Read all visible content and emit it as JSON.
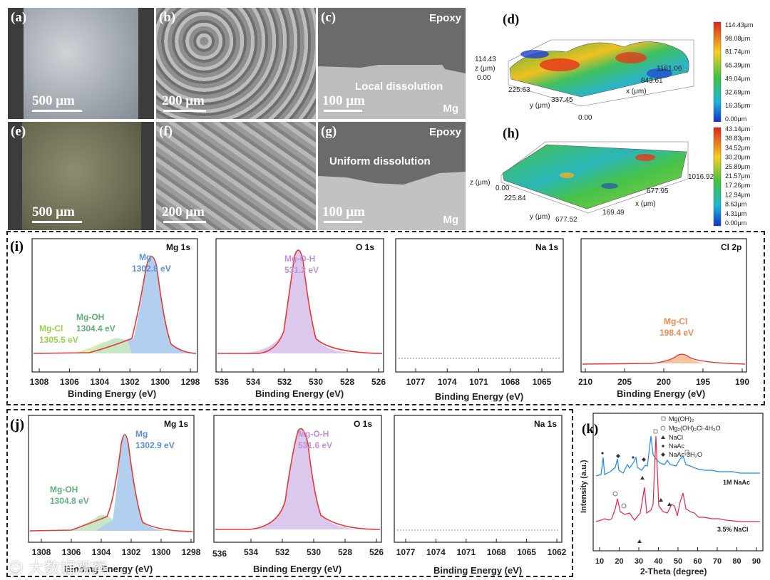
{
  "top_row": {
    "a": {
      "label": "(a)",
      "scale": "500 μm"
    },
    "b": {
      "label": "(b)",
      "scale": "200 μm"
    },
    "c": {
      "label": "(c)",
      "scale": "100 μm",
      "top": "Epoxy",
      "bottom": "Mg",
      "note": "Local dissolution"
    },
    "d": {
      "label": "(d)",
      "z_title": "z (μm)",
      "z_max": "114.43",
      "z_min": "0.00",
      "y_title": "y (μm)",
      "y_ticks": [
        "225.63",
        "337.45"
      ],
      "y_zero": "0.00",
      "x_title": "x (μm)",
      "x_ticks": [
        "843.61",
        "1181.06"
      ],
      "colorbar": [
        "114.43μm",
        "98.08μm",
        "81.74μm",
        "65.39μm",
        "49.04μm",
        "32.69μm",
        "16.35μm",
        "0.00μm"
      ]
    }
  },
  "second_row": {
    "e": {
      "label": "(e)",
      "scale": "500 μm"
    },
    "f": {
      "label": "(f)",
      "scale": "200 μm"
    },
    "g": {
      "label": "(g)",
      "scale": "100 μm",
      "top": "Epoxy",
      "bottom": "Mg",
      "note": "Uniform dissolution"
    },
    "h": {
      "label": "(h)",
      "z_title": "z (μm)",
      "z_min": "0.00",
      "y_title": "y (μm)",
      "y_ticks": [
        "225.84",
        "677.52"
      ],
      "x_title": "x (μm)",
      "x_ticks": [
        "169.49",
        "677.95",
        "1016.92"
      ],
      "colorbar": [
        "43.14μm",
        "38.83μm",
        "34.52μm",
        "30.20μm",
        "25.89μm",
        "21.57μm",
        "17.26μm",
        "12.94μm",
        "8.63μm",
        "4.31μm",
        "0.00μm"
      ]
    }
  },
  "xps_i": {
    "label": "(i)",
    "x_title": "Binding Energy (eV)",
    "mg": {
      "title": "Mg 1s",
      "ticks": [
        "1308",
        "1306",
        "1304",
        "1302",
        "1300",
        "1298"
      ],
      "peak1": "Mg",
      "peak1_val": "1302.8 eV",
      "peak2": "Mg-OH",
      "peak2_val": "1304.4 eV",
      "peak3": "Mg-Cl",
      "peak3_val": "1305.5 eV"
    },
    "o": {
      "title": "O 1s",
      "ticks": [
        "536",
        "534",
        "532",
        "530",
        "528",
        "526"
      ],
      "peak": "Mg-O-H",
      "peak_val": "531.2 eV"
    },
    "na": {
      "title": "Na 1s",
      "ticks": [
        "1077",
        "1074",
        "1071",
        "1068",
        "1065"
      ]
    },
    "cl": {
      "title": "Cl 2p",
      "ticks": [
        "210",
        "205",
        "200",
        "195",
        "190"
      ],
      "peak": "Mg-Cl",
      "peak_val": "198.4 eV"
    }
  },
  "xps_j": {
    "label": "(j)",
    "x_title": "Binding Energy (eV)",
    "mg": {
      "title": "Mg 1s",
      "ticks": [
        "1308",
        "1306",
        "1304",
        "1302",
        "1300",
        "1298"
      ],
      "peak1": "Mg",
      "peak1_val": "1302.9 eV",
      "peak2": "Mg-OH",
      "peak2_val": "1304.8 eV"
    },
    "o": {
      "title": "O 1s",
      "ticks": [
        "534",
        "532",
        "530",
        "528",
        "526"
      ],
      "tick_first": "536",
      "peak": "Mg-O-H",
      "peak_val": "531.6 eV"
    },
    "na": {
      "title": "Na 1s",
      "ticks": [
        "1077",
        "1074",
        "1071",
        "1068",
        "1065",
        "1062"
      ]
    }
  },
  "xrd": {
    "label": "(k)",
    "legend": [
      "Mg(OH)₂",
      "Mg₂(OH)₃Cl·4H₂O",
      "NaCl",
      "NaAc",
      "NaAc·3H₂O"
    ],
    "y_title": "Intensity (a.u.)",
    "x_title": "2-Theta (degree)",
    "x_ticks": [
      "10",
      "20",
      "30",
      "40",
      "50",
      "60",
      "70",
      "80",
      "90"
    ],
    "series1": "1M NaAc",
    "series2": "3.5% NaCl",
    "colors": {
      "blue": "#1e88e5",
      "red": "#e8254a"
    }
  },
  "watermark": "大数据观察"
}
